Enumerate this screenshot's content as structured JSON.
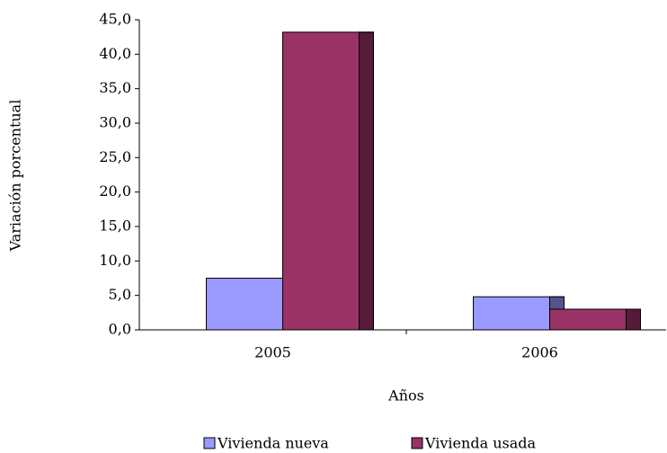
{
  "chart_data": {
    "type": "bar",
    "categories": [
      "2005",
      "2006"
    ],
    "series": [
      {
        "name": "Vivienda nueva",
        "color": "#9999ff",
        "values": [
          7.5,
          4.8
        ]
      },
      {
        "name": "Vivienda usada",
        "color": "#993366",
        "values": [
          43.2,
          3.0
        ]
      }
    ],
    "ylim": [
      0,
      45
    ],
    "yticks": [
      {
        "value": 0,
        "label": "0,0"
      },
      {
        "value": 5,
        "label": "5,0"
      },
      {
        "value": 10,
        "label": "10,0"
      },
      {
        "value": 15,
        "label": "15,0"
      },
      {
        "value": 20,
        "label": "20,0"
      },
      {
        "value": 25,
        "label": "25,0"
      },
      {
        "value": 30,
        "label": "30,0"
      },
      {
        "value": 35,
        "label": "35,0"
      },
      {
        "value": 40,
        "label": "40,0"
      },
      {
        "value": 45,
        "label": "45,0"
      }
    ],
    "xlabel": "Años",
    "ylabel": "Variación porcentual"
  }
}
